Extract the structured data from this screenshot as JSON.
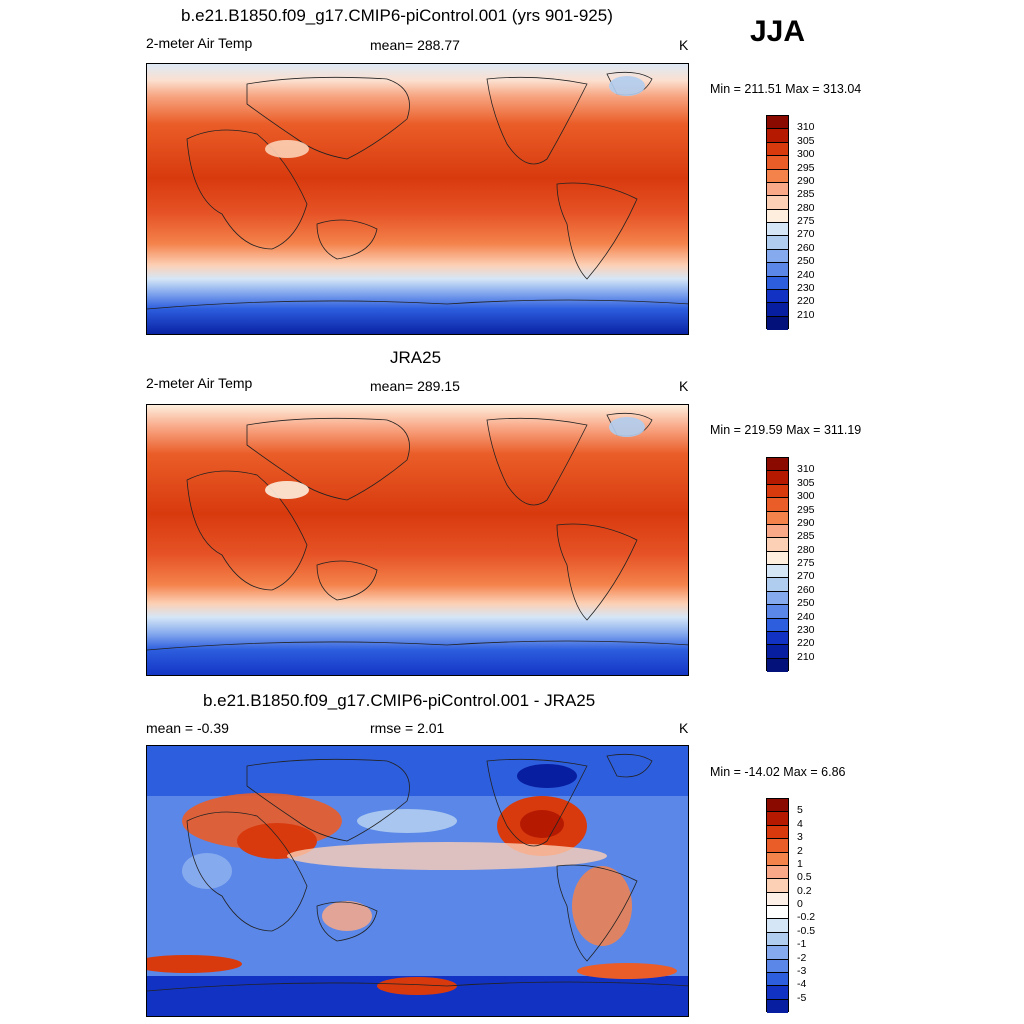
{
  "season": "JJA",
  "panels": [
    {
      "title": "b.e21.B1850.f09_g17.CMIP6-piControl.001 (yrs 901-925)",
      "left_label": "2-meter Air Temp",
      "center_label": "mean= 288.77",
      "units": "K",
      "minmax": "Min = 211.51 Max = 313.04"
    },
    {
      "title": "JRA25",
      "left_label": "2-meter Air Temp",
      "center_label": "mean= 289.15",
      "units": "K",
      "minmax": "Min = 219.59 Max = 311.19"
    },
    {
      "title": "b.e21.B1850.f09_g17.CMIP6-piControl.001 - JRA25",
      "left_label": "mean =  -0.39",
      "center_label": "rmse =   2.01",
      "units": "K",
      "minmax": "Min = -14.02 Max =   6.86"
    }
  ],
  "colorbar_temp": {
    "labels": [
      "310",
      "305",
      "300",
      "295",
      "290",
      "285",
      "280",
      "275",
      "270",
      "260",
      "250",
      "240",
      "230",
      "220",
      "210"
    ],
    "colors": [
      "#8b0a00",
      "#b51a00",
      "#d83a0e",
      "#ea5d28",
      "#f4824b",
      "#f9a988",
      "#fcd0b5",
      "#fdeede",
      "#d5e6f6",
      "#b0cdf0",
      "#86aaee",
      "#5a87e8",
      "#2d5ede",
      "#1232c4",
      "#071ea0",
      "#02127a"
    ]
  },
  "colorbar_diff": {
    "labels": [
      "5",
      "4",
      "3",
      "2",
      "1",
      "0.5",
      "0.2",
      "0",
      "-0.2",
      "-0.5",
      "-1",
      "-2",
      "-3",
      "-4",
      "-5"
    ],
    "colors": [
      "#8b0a00",
      "#b51a00",
      "#d83a0e",
      "#ea5d28",
      "#f4824b",
      "#f9a988",
      "#fcd0b5",
      "#fdf0e6",
      "#ffffff",
      "#d5e6f6",
      "#b0cdf0",
      "#86aaee",
      "#5a87e8",
      "#2d5ede",
      "#1232c4",
      "#071ea0"
    ]
  }
}
